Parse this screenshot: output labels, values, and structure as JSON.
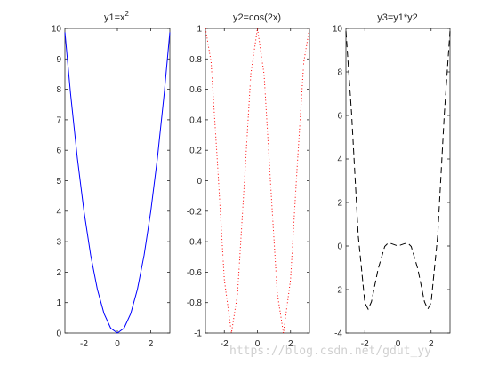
{
  "watermark": "https://blog.csdn.net/gdut_yy",
  "chart_data": [
    {
      "type": "line",
      "title_main": "y1=x",
      "title_sup": "2",
      "xlim": [
        -3.14159,
        3.14159
      ],
      "ylim": [
        0,
        10
      ],
      "xticks": [
        -2,
        0,
        2
      ],
      "yticks": [
        0,
        1,
        2,
        3,
        4,
        5,
        6,
        7,
        8,
        9,
        10
      ],
      "grid": false,
      "series": [
        {
          "color": "#0000ff",
          "line_style": "solid",
          "x": [
            -3.14,
            -2.8,
            -2.4,
            -2.0,
            -1.6,
            -1.2,
            -0.8,
            -0.4,
            0.0,
            0.4,
            0.8,
            1.2,
            1.6,
            2.0,
            2.4,
            2.8,
            3.14
          ],
          "y": [
            9.87,
            7.84,
            5.76,
            4.0,
            2.56,
            1.44,
            0.64,
            0.16,
            0.0,
            0.16,
            0.64,
            1.44,
            2.56,
            4.0,
            5.76,
            7.84,
            9.87
          ]
        }
      ]
    },
    {
      "type": "line",
      "title_main": "y2=cos(2x)",
      "title_sup": "",
      "xlim": [
        -3.14159,
        3.14159
      ],
      "ylim": [
        -1,
        1
      ],
      "xticks": [
        -2,
        0,
        2
      ],
      "yticks": [
        -1,
        -0.8,
        -0.6,
        -0.4,
        -0.2,
        0,
        0.2,
        0.4,
        0.6,
        0.8,
        1
      ],
      "grid": false,
      "series": [
        {
          "color": "#ff0000",
          "line_style": "dotted",
          "x": [
            -3.14,
            -2.8,
            -2.4,
            -2.0,
            -1.57,
            -1.2,
            -0.8,
            -0.4,
            0.0,
            0.4,
            0.8,
            1.2,
            1.57,
            2.0,
            2.4,
            2.8,
            3.14
          ],
          "y": [
            1.0,
            0.78,
            0.09,
            -0.65,
            -1.0,
            -0.74,
            -0.03,
            0.7,
            1.0,
            0.7,
            -0.03,
            -0.74,
            -1.0,
            -0.65,
            0.09,
            0.78,
            1.0
          ]
        }
      ]
    },
    {
      "type": "line",
      "title_main": "y3=y1*y2",
      "title_sup": "",
      "xlim": [
        -3.14159,
        3.14159
      ],
      "ylim": [
        -4,
        10
      ],
      "xticks": [
        -2,
        0,
        2
      ],
      "yticks": [
        -4,
        -2,
        0,
        2,
        4,
        6,
        8,
        10
      ],
      "grid": false,
      "series": [
        {
          "color": "#000000",
          "line_style": "dashed",
          "x": [
            -3.14,
            -2.8,
            -2.4,
            -2.0,
            -1.8,
            -1.6,
            -1.2,
            -0.8,
            -0.6,
            -0.4,
            0.0,
            0.4,
            0.6,
            0.8,
            1.2,
            1.6,
            1.8,
            2.0,
            2.4,
            2.8,
            3.14
          ],
          "y": [
            9.87,
            6.09,
            0.5,
            -2.61,
            -2.9,
            -2.56,
            -1.06,
            -0.02,
            0.13,
            0.11,
            0.0,
            0.11,
            0.13,
            -0.02,
            -1.06,
            -2.56,
            -2.9,
            -2.61,
            0.5,
            6.09,
            9.87
          ]
        }
      ]
    }
  ]
}
